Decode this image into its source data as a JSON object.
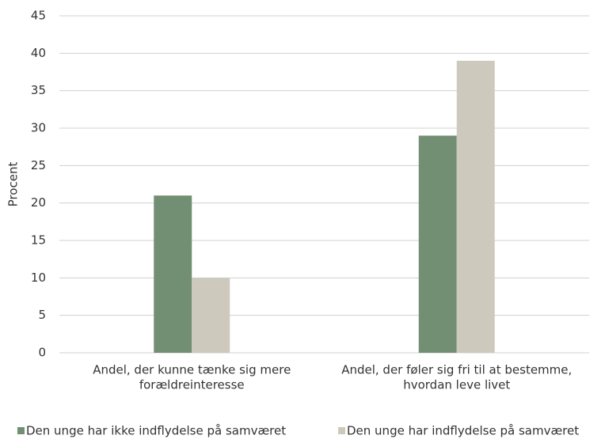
{
  "chart_data": {
    "type": "bar",
    "y_label": "Procent",
    "categories": [
      [
        "Andel, der kunne tænke sig mere",
        "forældreinteresse"
      ],
      [
        "Andel, der føler sig fri til at bestemme,",
        "hvordan leve livet"
      ]
    ],
    "series": [
      {
        "name": "Den unge har ikke indflydelse på samværet",
        "color": "#738f73",
        "values": [
          21,
          29
        ]
      },
      {
        "name": "Den unge har indflydelse på samværet",
        "color": "#cdcabd",
        "values": [
          10,
          39
        ]
      }
    ],
    "ylim": [
      0,
      45
    ],
    "yticks": [
      0,
      5,
      10,
      15,
      20,
      25,
      30,
      35,
      40,
      45
    ],
    "grid": true,
    "legend": "bottom"
  }
}
